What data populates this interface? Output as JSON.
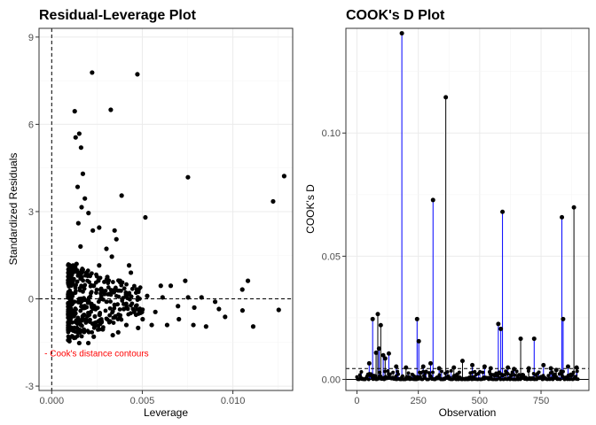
{
  "colors": {
    "points": "#000000",
    "lollipop": "#0000ff",
    "annotation": "#ff0000",
    "grid_major": "#ebebeb",
    "grid_minor": "#f5f5f5",
    "panel_border": "#333333"
  },
  "chart_data": [
    {
      "type": "scatter",
      "title": "Residual-Leverage Plot",
      "xlabel": "Leverage",
      "ylabel": "Standardized Residuals",
      "xlim": [
        -0.0007,
        0.0133
      ],
      "ylim": [
        -3.15,
        9.3
      ],
      "xticks": [
        0.0,
        0.005,
        0.01
      ],
      "xtick_labels": [
        "0.000",
        "0.005",
        "0.010"
      ],
      "yticks": [
        -3,
        0,
        3,
        6,
        9
      ],
      "ytick_labels": [
        "-3",
        "0",
        "3",
        "6",
        "9"
      ],
      "reference_lines": {
        "vertical_x": 0.0,
        "horizontal_y": 0.0,
        "style": "dashed"
      },
      "annotation": {
        "text": "- Cook's distance contours",
        "x": -0.0004,
        "y": -1.85
      },
      "grid": true,
      "points": [
        [
          0.00223,
          7.78
        ],
        [
          0.00473,
          7.72
        ],
        [
          0.00326,
          6.5
        ],
        [
          0.00127,
          6.45
        ],
        [
          0.00152,
          5.68
        ],
        [
          0.00132,
          5.55
        ],
        [
          0.00162,
          5.2
        ],
        [
          0.00172,
          4.3
        ],
        [
          0.00752,
          4.18
        ],
        [
          0.01283,
          4.22
        ],
        [
          0.01222,
          3.35
        ],
        [
          0.00386,
          3.55
        ],
        [
          0.00143,
          3.85
        ],
        [
          0.00183,
          3.45
        ],
        [
          0.00165,
          3.15
        ],
        [
          0.00517,
          2.8
        ],
        [
          0.00203,
          2.95
        ],
        [
          0.00227,
          2.35
        ],
        [
          0.00262,
          2.45
        ],
        [
          0.00347,
          2.35
        ],
        [
          0.00357,
          2.05
        ],
        [
          0.00302,
          1.72
        ],
        [
          0.00332,
          1.45
        ],
        [
          0.00262,
          1.15
        ],
        [
          0.00427,
          1.15
        ],
        [
          0.00437,
          0.9
        ],
        [
          0.00307,
          0.75
        ],
        [
          0.00737,
          0.62
        ],
        [
          0.01083,
          0.62
        ],
        [
          0.00657,
          0.45
        ],
        [
          0.00612,
          0.05
        ],
        [
          0.00697,
          -0.25
        ],
        [
          0.00753,
          0.05
        ],
        [
          0.00787,
          -0.3
        ],
        [
          0.00827,
          0.05
        ],
        [
          0.00902,
          -0.1
        ],
        [
          0.00923,
          -0.35
        ],
        [
          0.01052,
          0.32
        ],
        [
          0.00957,
          -0.62
        ],
        [
          0.01053,
          -0.4
        ],
        [
          0.01253,
          -0.38
        ],
        [
          0.01112,
          -0.95
        ],
        [
          0.00782,
          -0.9
        ],
        [
          0.00852,
          -0.95
        ],
        [
          0.00702,
          -0.7
        ],
        [
          0.00637,
          -0.9
        ],
        [
          0.00552,
          -0.9
        ],
        [
          0.00602,
          0.45
        ],
        [
          0.00527,
          0.1
        ],
        [
          0.00572,
          -0.45
        ],
        [
          0.00502,
          -0.7
        ],
        [
          0.00477,
          -1.0
        ],
        [
          0.00412,
          -0.9
        ],
        [
          0.00367,
          -1.15
        ],
        [
          0.00337,
          -1.25
        ],
        [
          0.00282,
          -1.05
        ],
        [
          0.00232,
          -1.3
        ],
        [
          0.00152,
          -1.52
        ],
        [
          0.00202,
          -1.52
        ],
        [
          0.00102,
          -1.05
        ],
        [
          0.00097,
          -0.35
        ],
        [
          0.00142,
          -0.85
        ],
        [
          0.00179,
          -0.55
        ],
        [
          0.00264,
          -0.55
        ],
        [
          0.00455,
          -0.45
        ],
        [
          0.00398,
          -0.35
        ],
        [
          0.00352,
          -0.6
        ],
        [
          0.00232,
          0.45
        ],
        [
          0.00192,
          0.9
        ],
        [
          0.00159,
          1.8
        ],
        [
          0.00147,
          2.6
        ],
        [
          0.00117,
          0.5
        ],
        [
          0.00137,
          1.2
        ]
      ]
    },
    {
      "type": "scatter",
      "title": "COOK's D Plot",
      "xlabel": "Observation",
      "ylabel": "COOK's D",
      "xlim": [
        -45,
        945
      ],
      "ylim": [
        -0.0045,
        0.1425
      ],
      "xticks": [
        0,
        250,
        500,
        750
      ],
      "xtick_labels": [
        "0",
        "250",
        "500",
        "750"
      ],
      "yticks": [
        0.0,
        0.05,
        0.1
      ],
      "ytick_labels": [
        "0.00",
        "0.05",
        "0.10"
      ],
      "reference_lines": {
        "horizontal_y": 0.0044,
        "style": "dashed"
      },
      "grid": true,
      "observations": [
        [
          183,
          0.1405
        ],
        [
          362,
          0.1145
        ],
        [
          310,
          0.0728
        ],
        [
          593,
          0.068
        ],
        [
          884,
          0.0698
        ],
        [
          835,
          0.0658
        ],
        [
          840,
          0.0245
        ],
        [
          85,
          0.0265
        ],
        [
          64,
          0.0245
        ],
        [
          245,
          0.0245
        ],
        [
          97,
          0.022
        ],
        [
          576,
          0.0225
        ],
        [
          586,
          0.0205
        ],
        [
          667,
          0.0165
        ],
        [
          722,
          0.0165
        ],
        [
          252,
          0.0155
        ],
        [
          78,
          0.0108
        ],
        [
          107,
          0.0098
        ],
        [
          90,
          0.0125
        ],
        [
          115,
          0.0085
        ],
        [
          130,
          0.0105
        ],
        [
          300,
          0.0065
        ],
        [
          430,
          0.0075
        ],
        [
          50,
          0.0065
        ],
        [
          160,
          0.0052
        ],
        [
          200,
          0.0048
        ],
        [
          270,
          0.0052
        ],
        [
          335,
          0.0045
        ],
        [
          395,
          0.0048
        ],
        [
          470,
          0.0058
        ],
        [
          520,
          0.0052
        ],
        [
          545,
          0.0045
        ],
        [
          615,
          0.0048
        ],
        [
          640,
          0.0042
        ],
        [
          700,
          0.0045
        ],
        [
          760,
          0.0058
        ],
        [
          790,
          0.0045
        ],
        [
          812,
          0.0038
        ],
        [
          860,
          0.0052
        ],
        [
          895,
          0.0048
        ]
      ]
    }
  ]
}
